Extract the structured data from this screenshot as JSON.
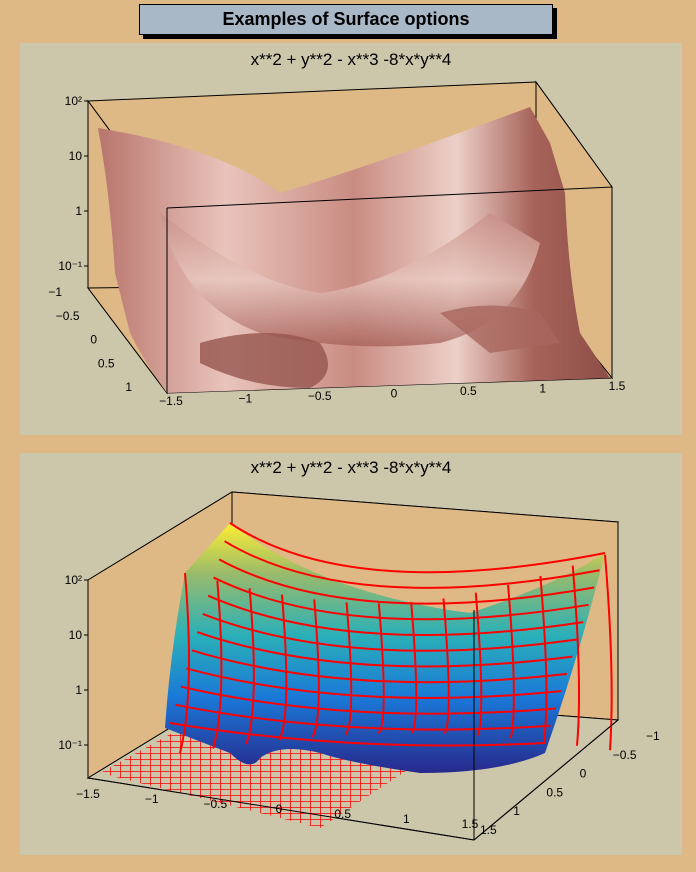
{
  "canvas_title": "Examples of Surface options",
  "colors": {
    "canvas_bg": "#dfb985",
    "pad_bg": "#ccc6aa",
    "frame_bg": "#dfb985",
    "title_box": "#a9b8c7",
    "mesh": "#ff0000",
    "surface_top": "#c87c74"
  },
  "chart_data": [
    {
      "type": "surface",
      "title": "x**2 + y**2 - x**3 -8*x*y**4",
      "function": "x**2 + y**2 - x**3 -8*x*y**4",
      "style": "gouraud shaded surface, single colour",
      "xlim": [
        -1.5,
        1.5
      ],
      "ylim": [
        -1,
        1.5
      ],
      "zscale": "log",
      "x_ticks": [
        "−1.5",
        "−1",
        "−0.5",
        "0",
        "0.5",
        "1",
        "1.5"
      ],
      "y_ticks": [
        "−1",
        "−0.5",
        "0",
        "0.5",
        "1"
      ],
      "z_ticks": [
        "10²",
        "10",
        "1",
        "10⁻¹"
      ]
    },
    {
      "type": "surface",
      "title": "x**2 + y**2 - x**3 -8*x*y**4",
      "function": "x**2 + y**2 - x**3 -8*x*y**4",
      "style": "colour surface with red mesh and contour projection",
      "xlim": [
        -1.5,
        1.5
      ],
      "ylim": [
        -1,
        1.5
      ],
      "zscale": "log",
      "x_ticks": [
        "−1.5",
        "−1",
        "−0.5",
        "0",
        "0.5",
        "1",
        "1.5"
      ],
      "y_ticks": [
        "−1",
        "−0.5",
        "0",
        "0.5",
        "1",
        "1.5"
      ],
      "z_ticks": [
        "10²",
        "10",
        "1",
        "10⁻¹"
      ]
    }
  ]
}
